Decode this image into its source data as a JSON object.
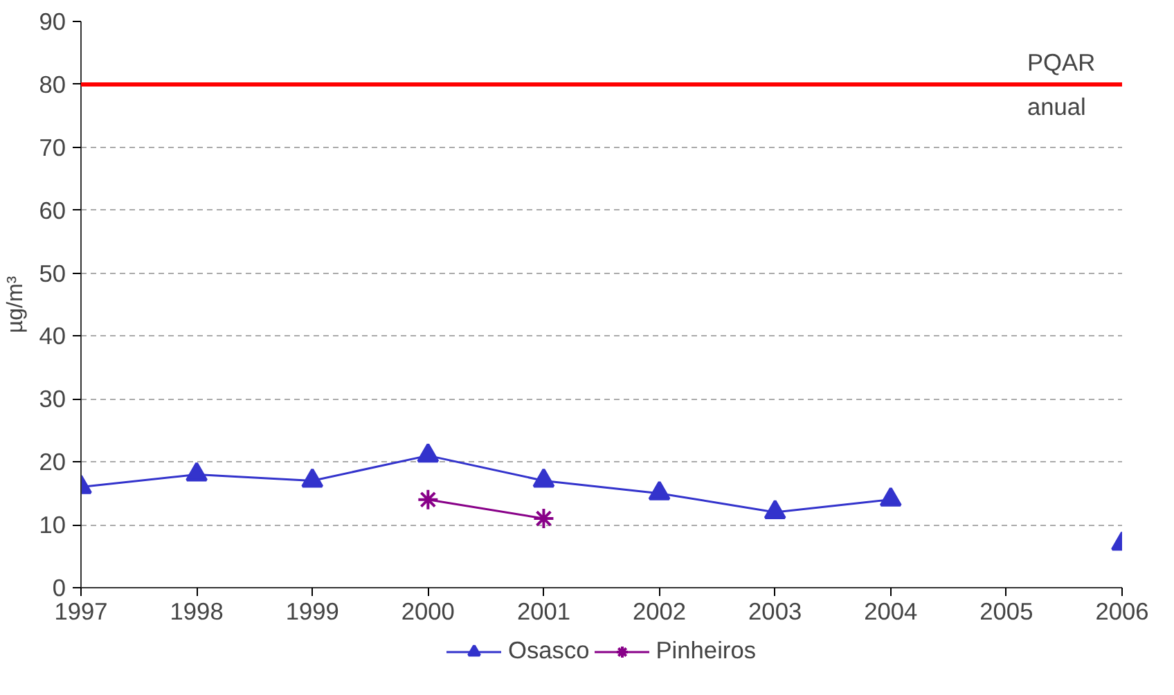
{
  "chart_data": {
    "type": "line",
    "ylabel": "µg/m³",
    "x": [
      1997,
      1998,
      1999,
      2000,
      2001,
      2002,
      2003,
      2004,
      2005,
      2006
    ],
    "xlim": [
      1997,
      2006
    ],
    "xticks": [
      1997,
      1998,
      1999,
      2000,
      2001,
      2002,
      2003,
      2004,
      2005,
      2006
    ],
    "ylim": [
      0,
      90
    ],
    "yticks": [
      0,
      10,
      20,
      30,
      40,
      50,
      60,
      70,
      80,
      90
    ],
    "series": [
      {
        "name": "Osasco",
        "color": "#3333cc",
        "marker": "triangle",
        "values": [
          16,
          18,
          17,
          21,
          17,
          15,
          12,
          14,
          null,
          7
        ]
      },
      {
        "name": "Pinheiros",
        "color": "#880088",
        "marker": "cross",
        "x": [
          2000,
          2001
        ],
        "values": [
          14,
          11
        ]
      }
    ],
    "ref_lines": [
      {
        "axis": "y",
        "value": 80,
        "label": "PQAR\nanual",
        "color": "#ff0000",
        "line_style": "solid"
      }
    ],
    "grid": "y",
    "legend": "bottom"
  }
}
